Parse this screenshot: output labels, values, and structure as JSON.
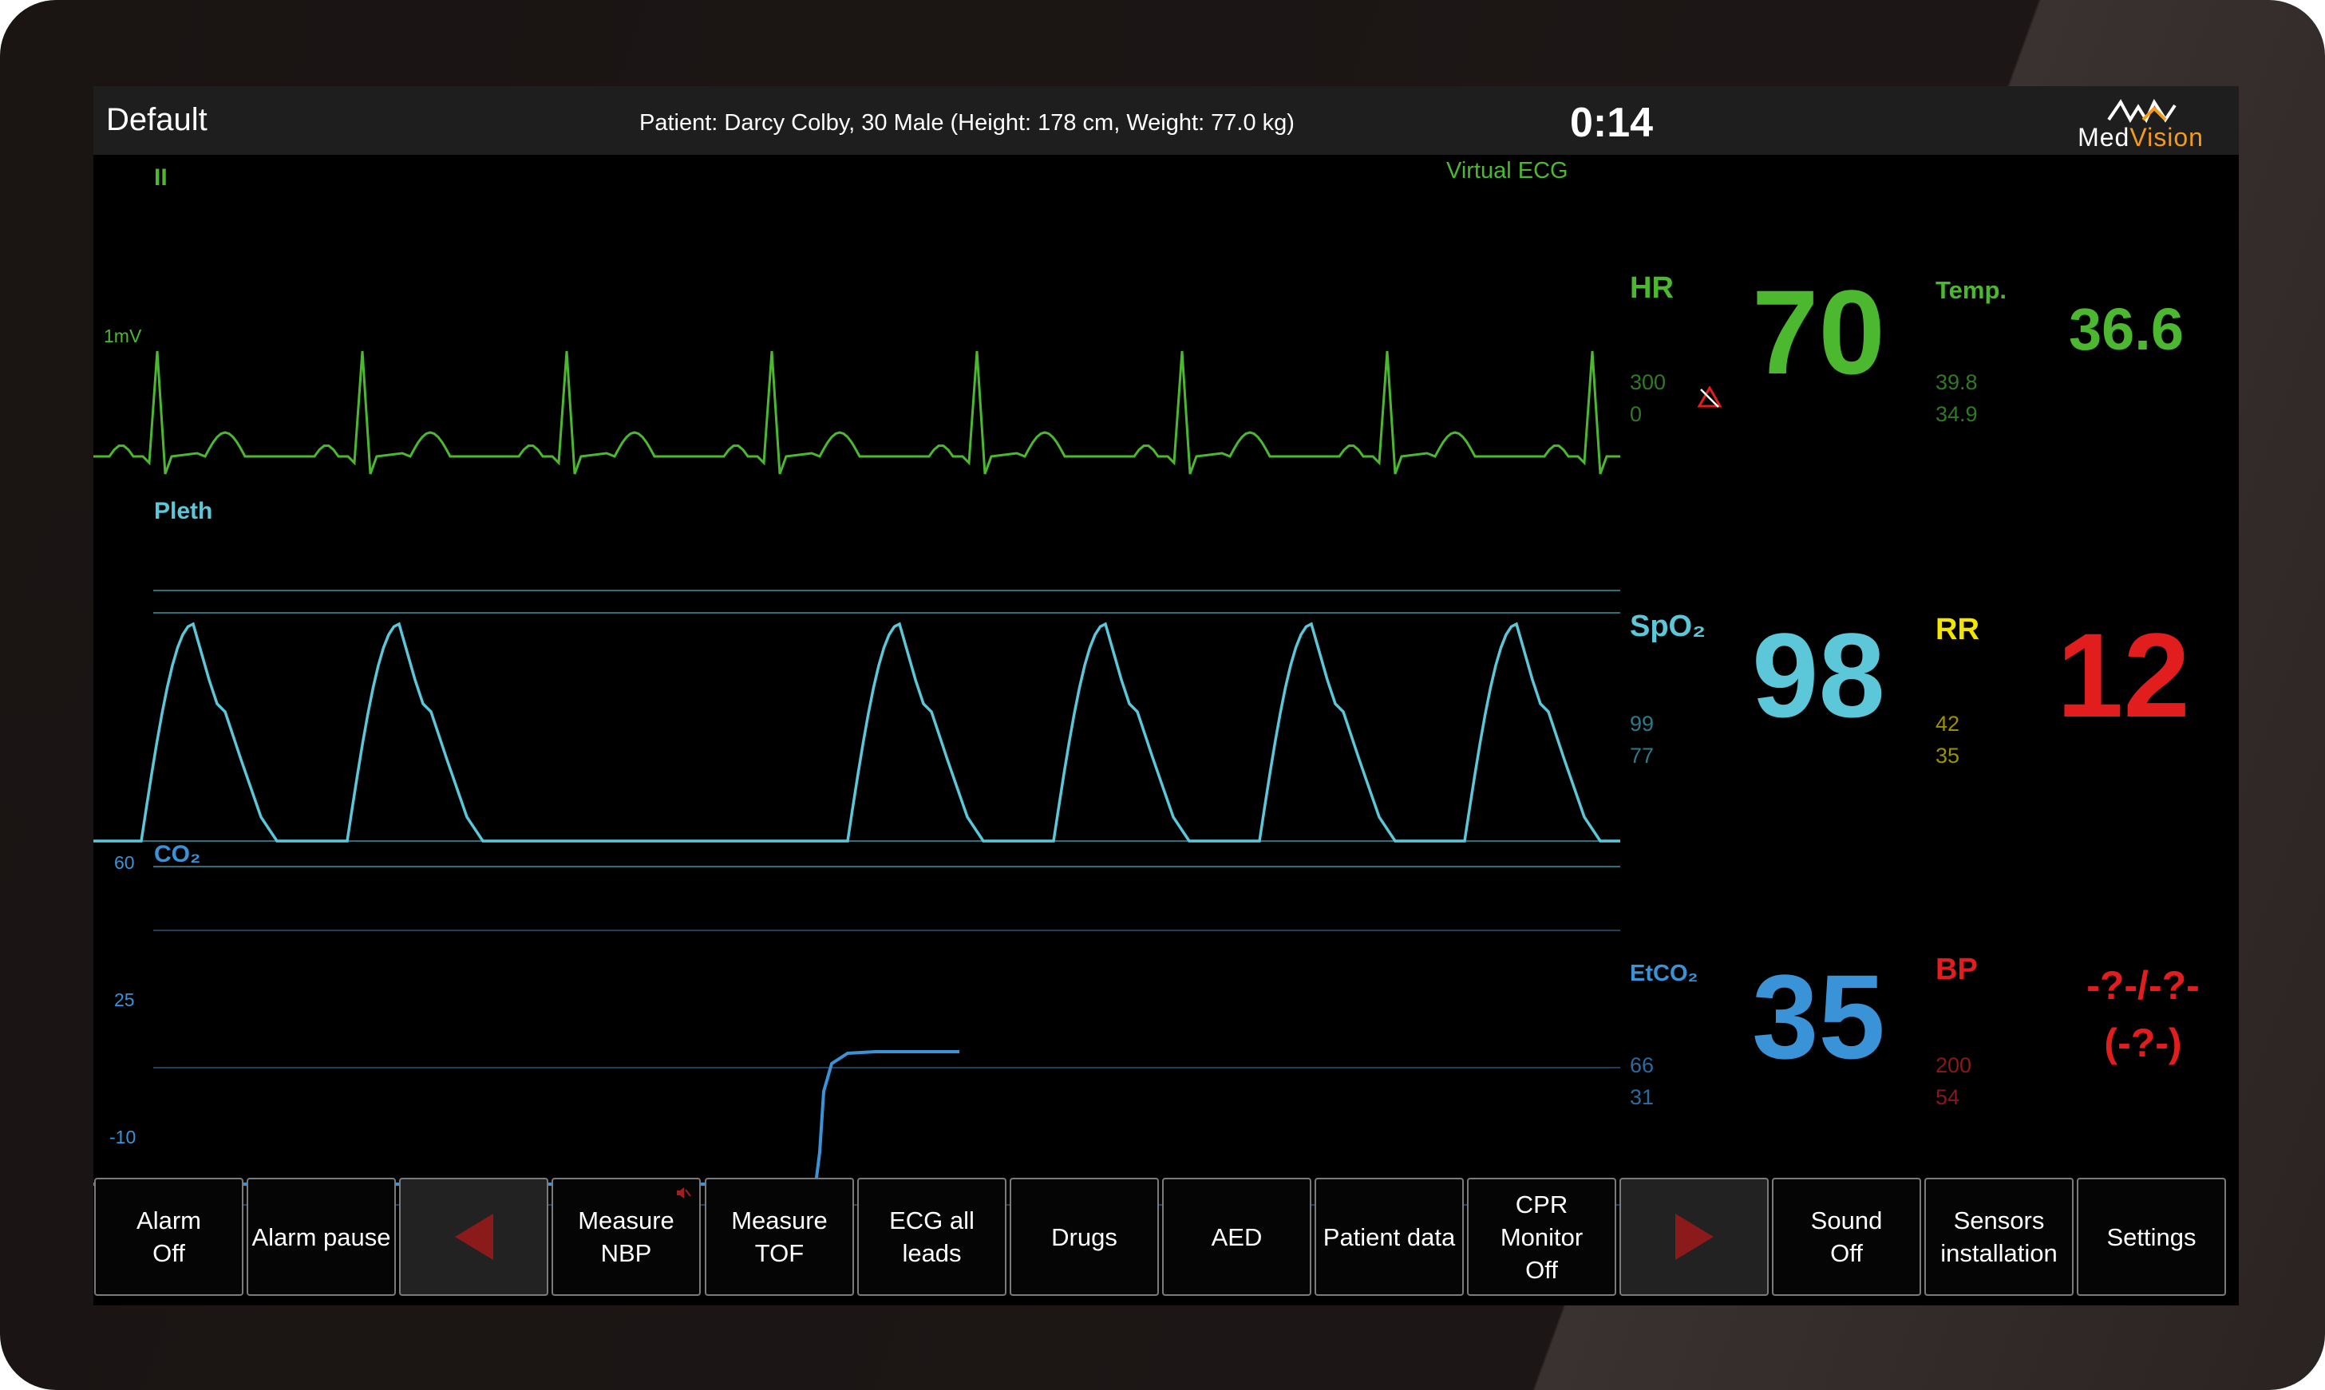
{
  "header": {
    "profile": "Default",
    "patient": "Patient: Darcy Colby, 30 Male   (Height: 178 cm, Weight: 77.0 kg)",
    "timer": "0:14",
    "logo": {
      "part1": "Med",
      "part2": "Vision"
    }
  },
  "waveforms": {
    "ecg": {
      "lead": "II",
      "scale": "1mV",
      "source": "Virtual ECG",
      "color": "#4cb82f"
    },
    "pleth": {
      "label": "Pleth",
      "color": "#5bc7d8"
    },
    "co2": {
      "label": "CO₂",
      "color": "#3a93d6",
      "scale": [
        "60",
        "25",
        "-10"
      ]
    }
  },
  "vitals": {
    "hr": {
      "label": "HR",
      "value": "70",
      "high": "300",
      "low": "0",
      "color": "#4cb82f",
      "alarm_icon": "alarm-off-icon"
    },
    "temp": {
      "label": "Temp.",
      "value": "36.6",
      "high": "39.8",
      "low": "34.9",
      "color": "#4cb82f"
    },
    "spo2": {
      "label": "SpO₂",
      "value": "98",
      "high": "99",
      "low": "77",
      "color": "#5bc7d8"
    },
    "rr": {
      "label": "RR",
      "value": "12",
      "high": "42",
      "low": "35",
      "label_color": "#f2e600",
      "value_color": "#e11d1d"
    },
    "etco2": {
      "label": "EtCO₂",
      "value": "35",
      "high": "66",
      "low": "31",
      "color": "#3a93d6"
    },
    "bp": {
      "label": "BP",
      "value_line1": "-?-/-?-",
      "value_line2": "(-?-)",
      "high": "200",
      "low": "54",
      "color": "#e11d1d"
    }
  },
  "toolbar": {
    "alarm_off": "Alarm\nOff",
    "alarm_pause": "Alarm pause",
    "prev": "previous-page",
    "measure_nbp": "Measure\nNBP",
    "measure_tof": "Measure\nTOF",
    "ecg_all_leads": "ECG all\nleads",
    "drugs": "Drugs",
    "aed": "AED",
    "patient_data": "Patient data",
    "cpr_monitor": "CPR\nMonitor\nOff",
    "next": "next-page",
    "sound_off": "Sound\nOff",
    "sensors": "Sensors\ninstallation",
    "settings": "Settings"
  }
}
